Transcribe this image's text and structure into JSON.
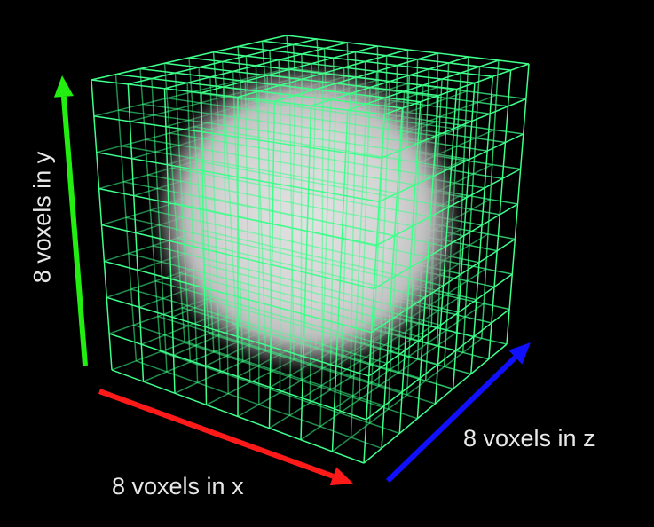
{
  "labels": {
    "x_axis": "8 voxels in x",
    "y_axis": "8 voxels in y",
    "z_axis": "8 voxels in z"
  },
  "grid": {
    "voxels_x": 8,
    "voxels_y": 8,
    "voxels_z": 8
  },
  "colors": {
    "background": "#000000",
    "grid_lines": "#3dff8a",
    "x_arrow": "#ff1a1a",
    "y_arrow": "#22ee11",
    "z_arrow": "#1010ff",
    "sphere": "#dcdcdc"
  }
}
